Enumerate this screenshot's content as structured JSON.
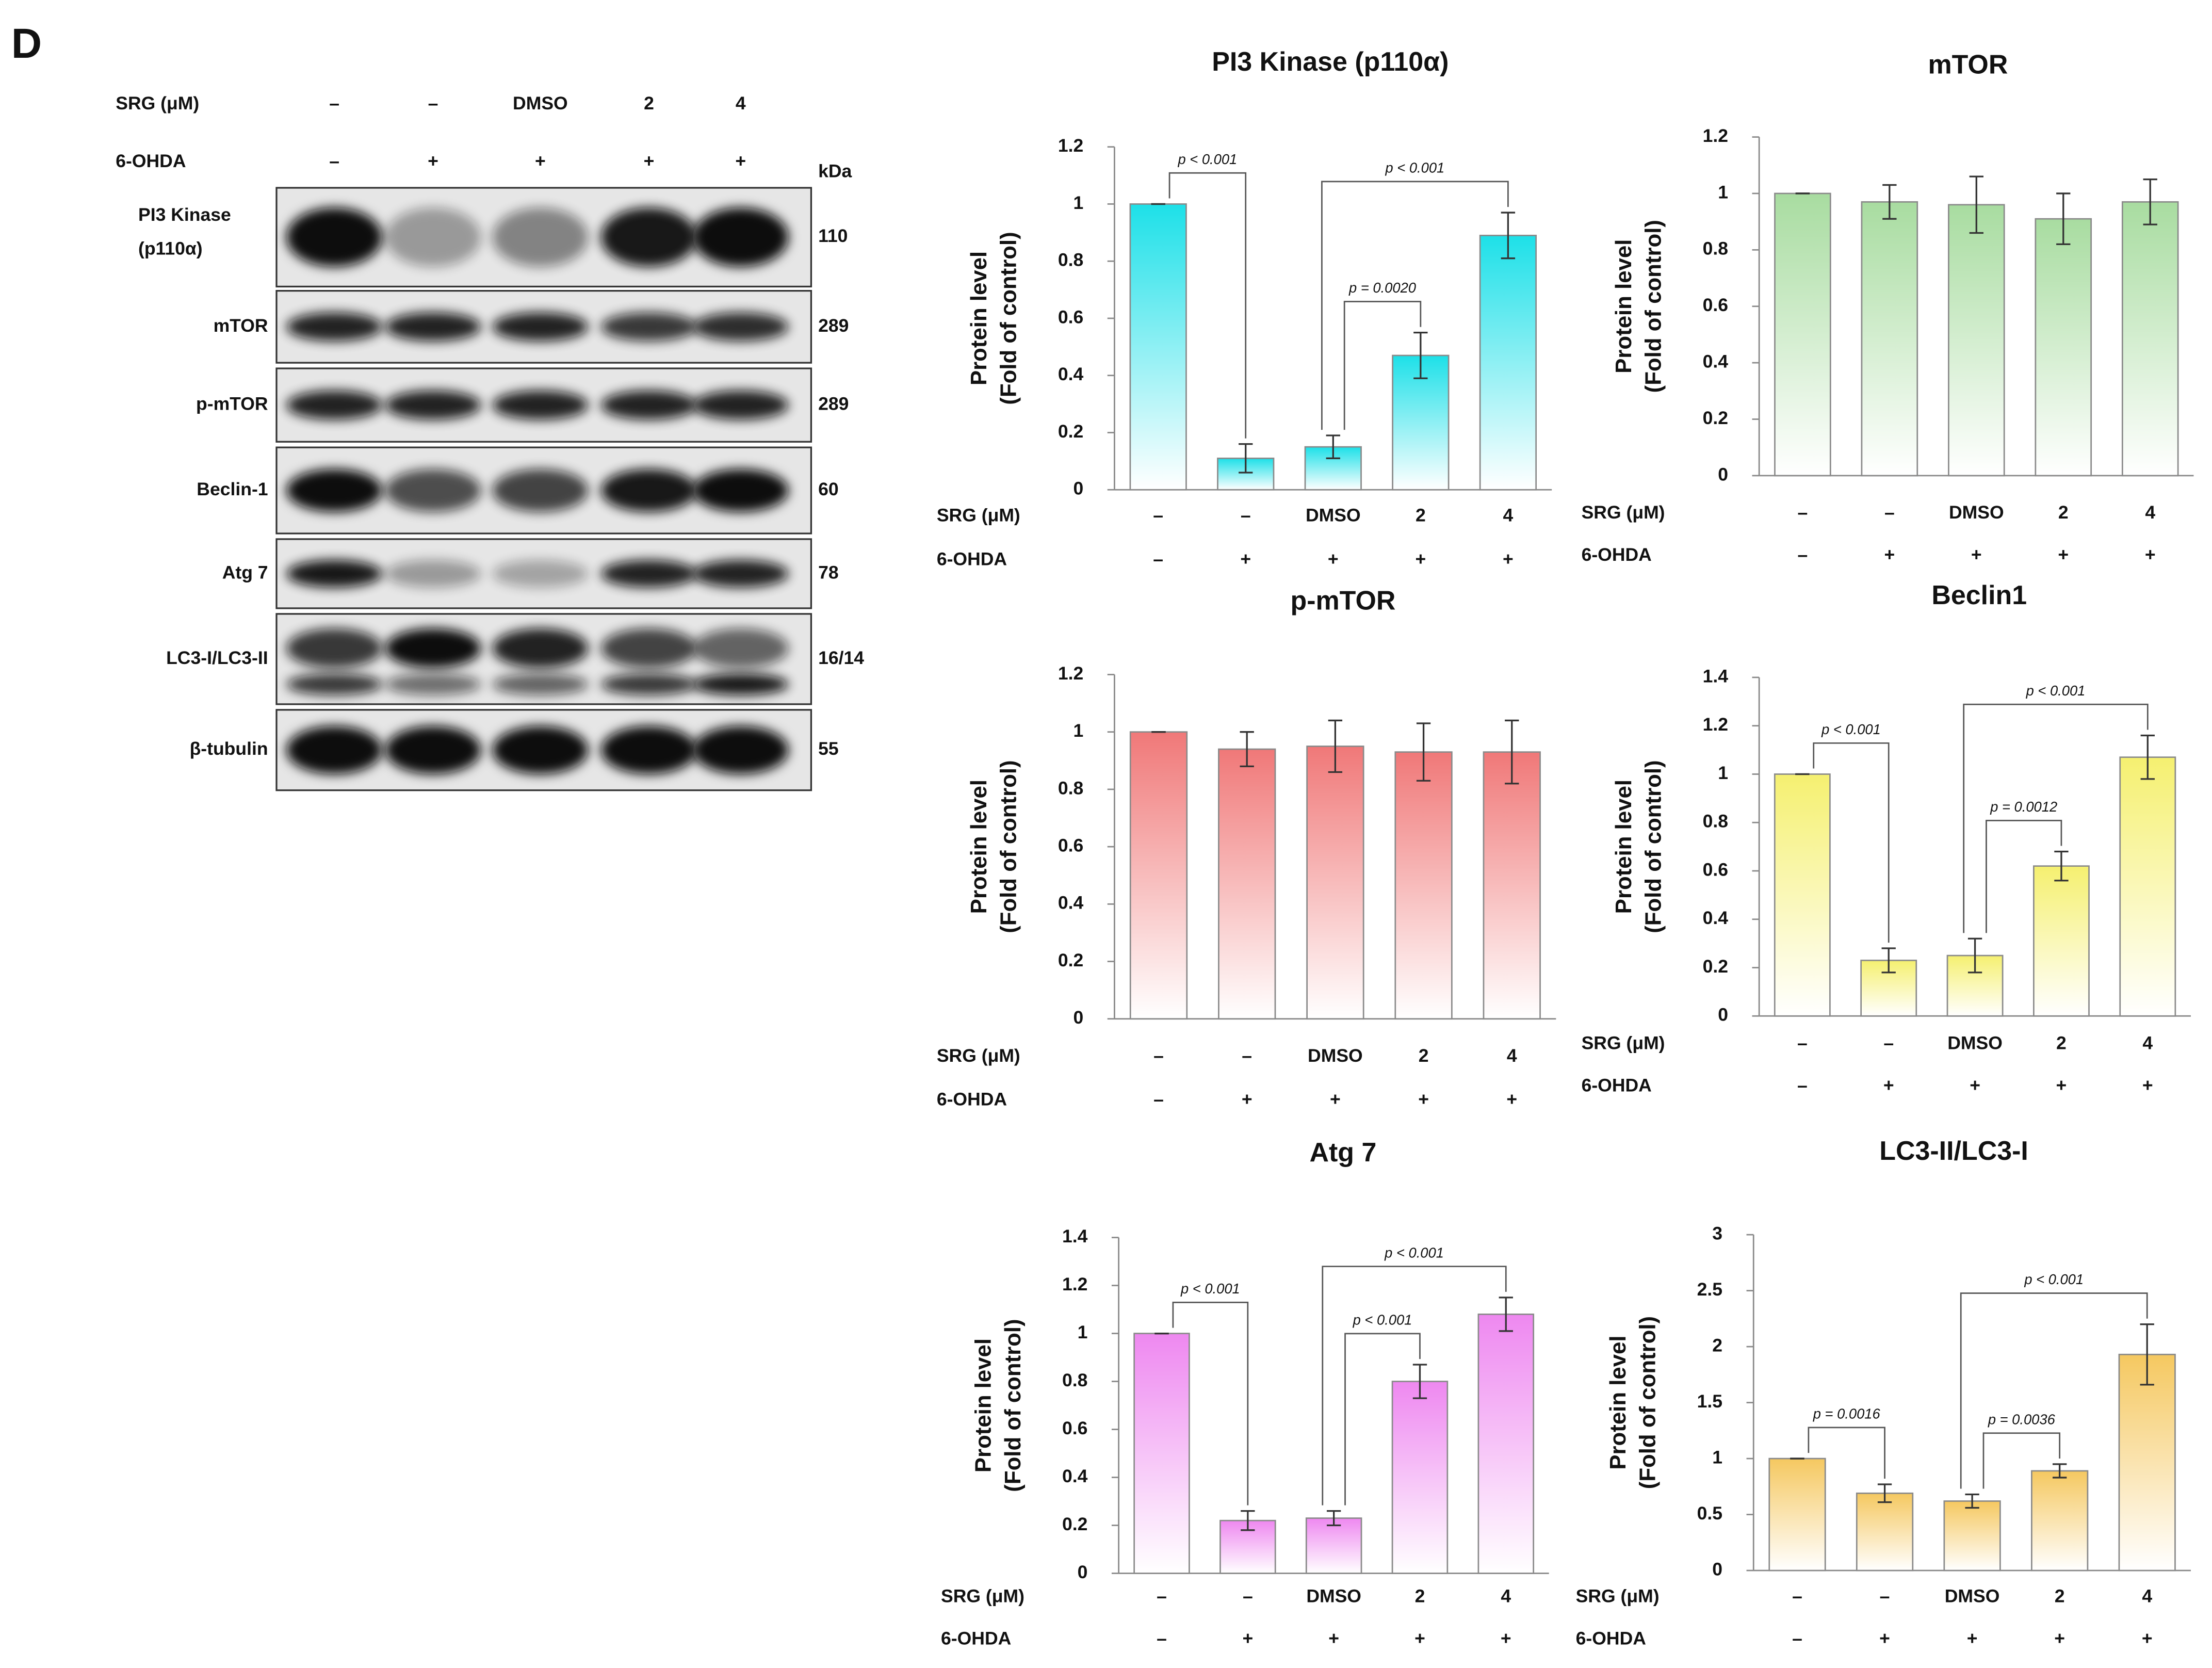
{
  "panel_label": "D",
  "blot": {
    "treatment_rows": [
      {
        "name": "SRG (μM)",
        "labels": [
          "–",
          "–",
          "DMSO",
          "2",
          "4"
        ]
      },
      {
        "name": "6-OHDA",
        "labels": [
          "–",
          "+",
          "+",
          "+",
          "+"
        ]
      }
    ],
    "kda_header": "kDa",
    "rows": [
      {
        "label": [
          "PI3 Kinase",
          "(p110α)"
        ],
        "kda": "110"
      },
      {
        "label": [
          "mTOR"
        ],
        "kda": "289"
      },
      {
        "label": [
          "p-mTOR"
        ],
        "kda": "289"
      },
      {
        "label": [
          "Beclin-1"
        ],
        "kda": "60"
      },
      {
        "label": [
          "Atg 7"
        ],
        "kda": "78"
      },
      {
        "label": [
          "LC3-I/LC3-II"
        ],
        "kda": "16/14"
      },
      {
        "label": [
          "β-tubulin"
        ],
        "kda": "55"
      }
    ]
  },
  "chart_data": [
    {
      "type": "bar",
      "title": "PI3 Kinase  (p110α)",
      "y_label": [
        "Protein level",
        "(Fold of control)"
      ],
      "category_rows": [
        {
          "name": "SRG (μM)",
          "labels": [
            "–",
            "–",
            "DMSO",
            "2",
            "4"
          ]
        },
        {
          "name": "6-OHDA",
          "labels": [
            "–",
            "+",
            "+",
            "+",
            "+"
          ]
        }
      ],
      "values": [
        1,
        0.11,
        0.15,
        0.47,
        0.89
      ],
      "errors": [
        0,
        0.05,
        0.04,
        0.08,
        0.08
      ],
      "color": "#1de0e8",
      "ylim": [
        0,
        1.2
      ],
      "yticks": [
        0,
        0.2,
        0.4,
        0.6,
        0.8,
        1,
        1.2
      ],
      "annotations": [
        {
          "text": "p < 0.001",
          "from": 0,
          "to": 1
        },
        {
          "text": "p = 0.0020",
          "from": 2,
          "to": 3
        },
        {
          "text": "p < 0.001",
          "from": 2,
          "to": 4
        }
      ]
    },
    {
      "type": "bar",
      "title": "mTOR",
      "y_label": [
        "Protein level",
        "(Fold of control)"
      ],
      "category_rows": [
        {
          "name": "SRG (μM)",
          "labels": [
            "–",
            "–",
            "DMSO",
            "2",
            "4"
          ]
        },
        {
          "name": "6-OHDA",
          "labels": [
            "–",
            "+",
            "+",
            "+",
            "+"
          ]
        }
      ],
      "values": [
        1,
        0.97,
        0.96,
        0.91,
        0.97
      ],
      "errors": [
        0,
        0.06,
        0.1,
        0.09,
        0.08
      ],
      "color": "#a8dca0",
      "ylim": [
        0,
        1.2
      ],
      "yticks": [
        0,
        0.2,
        0.4,
        0.6,
        0.8,
        1,
        1.2
      ],
      "annotations": []
    },
    {
      "type": "bar",
      "title": "p-mTOR",
      "y_label": [
        "Protein level",
        "(Fold of control)"
      ],
      "category_rows": [
        {
          "name": "SRG (μM)",
          "labels": [
            "–",
            "–",
            "DMSO",
            "2",
            "4"
          ]
        },
        {
          "name": "6-OHDA",
          "labels": [
            "–",
            "+",
            "+",
            "+",
            "+"
          ]
        }
      ],
      "values": [
        1,
        0.94,
        0.95,
        0.93,
        0.93
      ],
      "errors": [
        0,
        0.06,
        0.09,
        0.1,
        0.11
      ],
      "color": "#f07878",
      "ylim": [
        0,
        1.2
      ],
      "yticks": [
        0,
        0.2,
        0.4,
        0.6,
        0.8,
        1,
        1.2
      ],
      "annotations": []
    },
    {
      "type": "bar",
      "title": "Beclin1",
      "y_label": [
        "Protein level",
        "(Fold of control)"
      ],
      "category_rows": [
        {
          "name": "SRG (μM)",
          "labels": [
            "–",
            "–",
            "DMSO",
            "2",
            "4"
          ]
        },
        {
          "name": "6-OHDA",
          "labels": [
            "–",
            "+",
            "+",
            "+",
            "+"
          ]
        }
      ],
      "values": [
        1,
        0.23,
        0.25,
        0.62,
        1.07
      ],
      "errors": [
        0,
        0.05,
        0.07,
        0.06,
        0.09
      ],
      "color": "#f5f070",
      "ylim": [
        0,
        1.4
      ],
      "yticks": [
        0,
        0.2,
        0.4,
        0.6,
        0.8,
        1,
        1.2,
        1.4
      ],
      "annotations": [
        {
          "text": "p < 0.001",
          "from": 0,
          "to": 1
        },
        {
          "text": "p = 0.0012",
          "from": 2,
          "to": 3
        },
        {
          "text": "p < 0.001",
          "from": 2,
          "to": 4
        }
      ]
    },
    {
      "type": "bar",
      "title": "Atg 7",
      "y_label": [
        "Protein level",
        "(Fold of control)"
      ],
      "category_rows": [
        {
          "name": "SRG (μM)",
          "labels": [
            "–",
            "–",
            "DMSO",
            "2",
            "4"
          ]
        },
        {
          "name": "6-OHDA",
          "labels": [
            "–",
            "+",
            "+",
            "+",
            "+"
          ]
        }
      ],
      "values": [
        1,
        0.22,
        0.23,
        0.8,
        1.08
      ],
      "errors": [
        0,
        0.04,
        0.03,
        0.07,
        0.07
      ],
      "color": "#ee88f0",
      "ylim": [
        0,
        1.4
      ],
      "yticks": [
        0,
        0.2,
        0.4,
        0.6,
        0.8,
        1,
        1.2,
        1.4
      ],
      "annotations": [
        {
          "text": "p < 0.001",
          "from": 0,
          "to": 1
        },
        {
          "text": "p < 0.001",
          "from": 2,
          "to": 3
        },
        {
          "text": "p < 0.001",
          "from": 2,
          "to": 4
        }
      ]
    },
    {
      "type": "bar",
      "title": "LC3-II/LC3-I",
      "y_label": [
        "Protein level",
        "(Fold of control)"
      ],
      "category_rows": [
        {
          "name": "SRG (μM)",
          "labels": [
            "–",
            "–",
            "DMSO",
            "2",
            "4"
          ]
        },
        {
          "name": "6-OHDA",
          "labels": [
            "–",
            "+",
            "+",
            "+",
            "+"
          ]
        }
      ],
      "values": [
        1,
        0.69,
        0.62,
        0.89,
        1.93
      ],
      "errors": [
        0,
        0.08,
        0.06,
        0.06,
        0.27
      ],
      "color": "#f5c860",
      "ylim": [
        0,
        3
      ],
      "yticks": [
        0,
        0.5,
        1,
        1.5,
        2,
        2.5,
        3
      ],
      "annotations": [
        {
          "text": "p = 0.0016",
          "from": 0,
          "to": 1
        },
        {
          "text": "p = 0.0036",
          "from": 2,
          "to": 3
        },
        {
          "text": "p < 0.001",
          "from": 2,
          "to": 4
        }
      ]
    }
  ]
}
